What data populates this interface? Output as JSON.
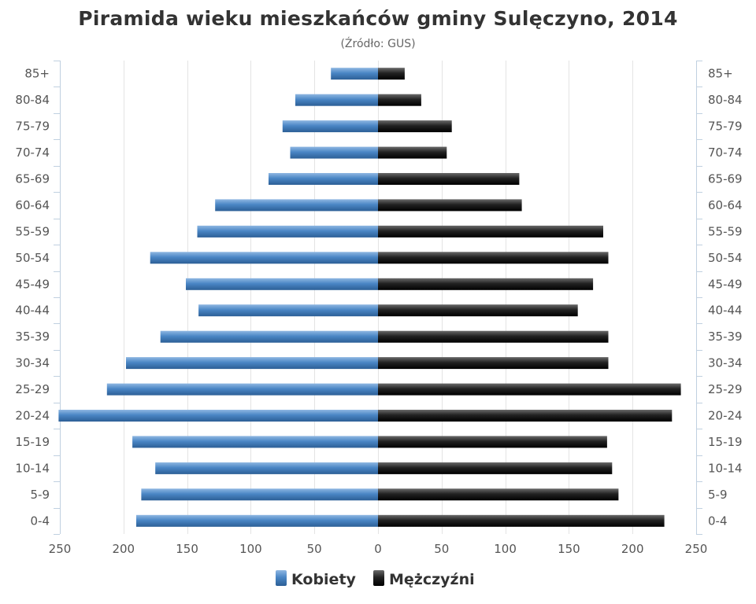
{
  "chart_data": {
    "type": "bar",
    "orientation": "horizontal",
    "title": "Piramida wieku mieszkańców gminy Sulęczyno, 2014",
    "subtitle": "(Źródło: GUS)",
    "categories": [
      "85+",
      "80-84",
      "75-79",
      "70-74",
      "65-69",
      "60-64",
      "55-59",
      "50-54",
      "45-49",
      "40-44",
      "35-39",
      "30-34",
      "25-29",
      "20-24",
      "15-19",
      "10-14",
      "5-9",
      "0-4"
    ],
    "series": [
      {
        "name": "Kobiety",
        "color": "#4a86c5",
        "side": "left",
        "values": [
          37,
          65,
          75,
          69,
          86,
          128,
          142,
          179,
          151,
          141,
          171,
          198,
          213,
          251,
          193,
          175,
          186,
          190
        ]
      },
      {
        "name": "Mężczyźni",
        "color": "#222222",
        "side": "right",
        "values": [
          21,
          34,
          58,
          54,
          111,
          113,
          177,
          181,
          169,
          157,
          181,
          181,
          238,
          231,
          180,
          184,
          189,
          225
        ]
      }
    ],
    "xlim": [
      -250,
      250
    ],
    "xticks": [
      -250,
      -200,
      -150,
      -100,
      -50,
      0,
      50,
      100,
      150,
      200,
      250
    ],
    "xtick_labels": [
      "250",
      "200",
      "150",
      "100",
      "50",
      "0",
      "50",
      "100",
      "150",
      "200",
      "250"
    ],
    "grid": true,
    "legend_position": "bottom-center"
  }
}
